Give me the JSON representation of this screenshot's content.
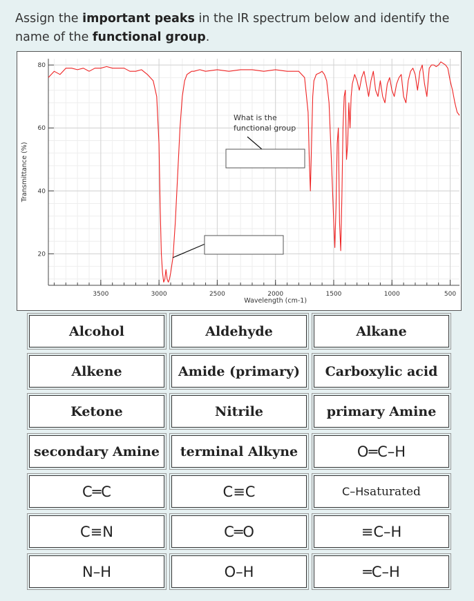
{
  "prompt": {
    "part1": "Assign the ",
    "bold1": "important peaks",
    "part2": " in the IR spectrum below and identify the name of the ",
    "bold2": "functional group",
    "part3": "."
  },
  "chart_data": {
    "type": "line",
    "title": "",
    "xlabel": "Wavelength (cm-1)",
    "ylabel": "Transmittance (%)",
    "xlim": [
      3950,
      420
    ],
    "ylim": [
      10,
      82
    ],
    "x_ticks": [
      3500,
      3000,
      2500,
      2000,
      1500,
      1000,
      500
    ],
    "y_ticks": [
      20,
      40,
      60,
      80
    ],
    "grid": true,
    "line_color": "#ee2222",
    "series": [
      {
        "x": [
          3950,
          3900,
          3850,
          3800,
          3750,
          3700,
          3650,
          3600,
          3550,
          3500,
          3450,
          3400,
          3350,
          3300,
          3250,
          3200,
          3150,
          3100,
          3050,
          3020,
          3000,
          2990,
          2980,
          2970,
          2960,
          2950,
          2940,
          2930,
          2920,
          2910,
          2900,
          2880,
          2860,
          2840,
          2820,
          2800,
          2780,
          2760,
          2740,
          2720,
          2700,
          2650,
          2600,
          2500,
          2400,
          2300,
          2200,
          2100,
          2000,
          1900,
          1800,
          1750,
          1720,
          1710,
          1700,
          1690,
          1680,
          1670,
          1650,
          1620,
          1600,
          1580,
          1560,
          1540,
          1520,
          1500,
          1490,
          1480,
          1470,
          1460,
          1450,
          1440,
          1430,
          1420,
          1410,
          1400,
          1390,
          1380,
          1370,
          1360,
          1350,
          1340,
          1320,
          1300,
          1280,
          1260,
          1240,
          1220,
          1200,
          1180,
          1160,
          1140,
          1120,
          1100,
          1080,
          1060,
          1040,
          1020,
          1000,
          980,
          960,
          940,
          920,
          900,
          880,
          860,
          840,
          820,
          800,
          780,
          760,
          740,
          720,
          700,
          680,
          660,
          640,
          620,
          600,
          580,
          560,
          540,
          520,
          500,
          480,
          460,
          440,
          420
        ],
        "y": [
          76,
          78,
          77,
          79,
          79,
          78.5,
          79,
          78,
          79,
          79,
          79.5,
          79,
          79,
          79,
          78,
          78,
          78.5,
          77,
          75,
          70,
          55,
          35,
          20,
          14,
          11,
          12,
          15,
          12,
          11,
          12,
          14,
          19,
          30,
          45,
          60,
          70,
          75,
          77,
          77.5,
          78,
          78,
          78.5,
          78,
          78.5,
          78,
          78.5,
          78.5,
          78,
          78.5,
          78,
          78,
          76,
          65,
          50,
          40,
          55,
          70,
          75,
          77,
          77.5,
          78,
          77,
          75,
          68,
          50,
          30,
          22,
          35,
          55,
          60,
          30,
          21,
          38,
          60,
          70,
          72,
          50,
          55,
          68,
          60,
          70,
          74,
          77,
          75,
          72,
          76,
          78,
          74,
          70,
          75,
          78,
          72,
          70,
          75,
          70,
          68,
          74,
          76,
          72,
          70,
          74,
          76,
          77,
          70,
          68,
          75,
          78,
          79,
          77,
          72,
          78,
          80,
          74,
          70,
          79,
          80,
          80,
          79.5,
          80,
          81,
          80.5,
          80,
          79,
          75,
          72,
          68,
          65,
          64
        ]
      }
    ],
    "annotations": [
      {
        "text_lines": [
          "What is the",
          "functional group"
        ],
        "data_x": 1940,
        "data_y": 62
      }
    ]
  },
  "answer_boxes": [
    {
      "name": "upper-answer-box"
    },
    {
      "name": "lower-answer-box"
    }
  ],
  "tiles": [
    {
      "label": "Alcohol",
      "style": "word"
    },
    {
      "label": "Aldehyde",
      "style": "word"
    },
    {
      "label": "Alkane",
      "style": "word"
    },
    {
      "label": "Alkene",
      "style": "word"
    },
    {
      "label": "Amide (primary)",
      "style": "word"
    },
    {
      "label": "Carboxylic acid",
      "style": "word"
    },
    {
      "label": "Ketone",
      "style": "word"
    },
    {
      "label": "Nitrile",
      "style": "word"
    },
    {
      "label": "primary Amine",
      "style": "word"
    },
    {
      "label": "secondary Amine",
      "style": "word"
    },
    {
      "label": "terminal Alkyne",
      "style": "word"
    },
    {
      "label": "O═C–H",
      "style": "formula"
    },
    {
      "label": "C═C",
      "style": "formula"
    },
    {
      "label": "C≡C",
      "style": "formula"
    },
    {
      "label": "C–H",
      "sub": " saturated",
      "style": "formula small"
    },
    {
      "label": "C≡N",
      "style": "formula"
    },
    {
      "label": "C═O",
      "style": "formula"
    },
    {
      "label": "≡C–H",
      "style": "formula"
    },
    {
      "label": "N–H",
      "style": "formula"
    },
    {
      "label": "O–H",
      "style": "formula"
    },
    {
      "label": "═C–H",
      "style": "formula"
    }
  ]
}
